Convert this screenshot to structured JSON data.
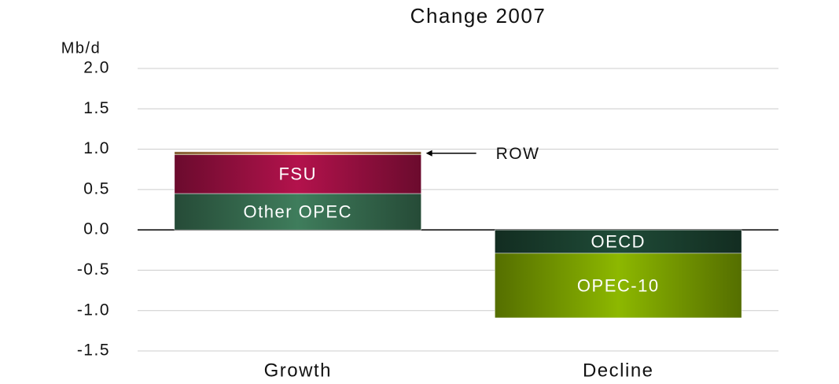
{
  "chart_data": {
    "type": "stacked_bar",
    "title": "Change 2007",
    "ylabel": "Mb/d",
    "categories": [
      "Growth",
      "Decline"
    ],
    "series": [
      {
        "name": "Other OPEC",
        "color": "#3f7d5c",
        "values": [
          0.45,
          0
        ]
      },
      {
        "name": "FSU",
        "color": "#b3124c",
        "values": [
          0.48,
          0
        ]
      },
      {
        "name": "ROW",
        "color": "#dfa25e",
        "values": [
          0.04,
          0
        ]
      },
      {
        "name": "OECD",
        "color": "#1f4b37",
        "values": [
          0,
          -0.29
        ]
      },
      {
        "name": "OPEC-10",
        "color": "#8db800",
        "values": [
          0,
          -0.8
        ]
      }
    ],
    "ylim": [
      -1.5,
      2.0
    ],
    "yticks": [
      {
        "value": 2,
        "label": "2.0"
      },
      1.5,
      {
        "value": 1,
        "label": "1.0"
      },
      0.5,
      {
        "value": 0,
        "label": "0.0"
      },
      -0.5,
      {
        "value": -1,
        "label": "-1.0"
      },
      -1.5
    ],
    "grid": true
  }
}
